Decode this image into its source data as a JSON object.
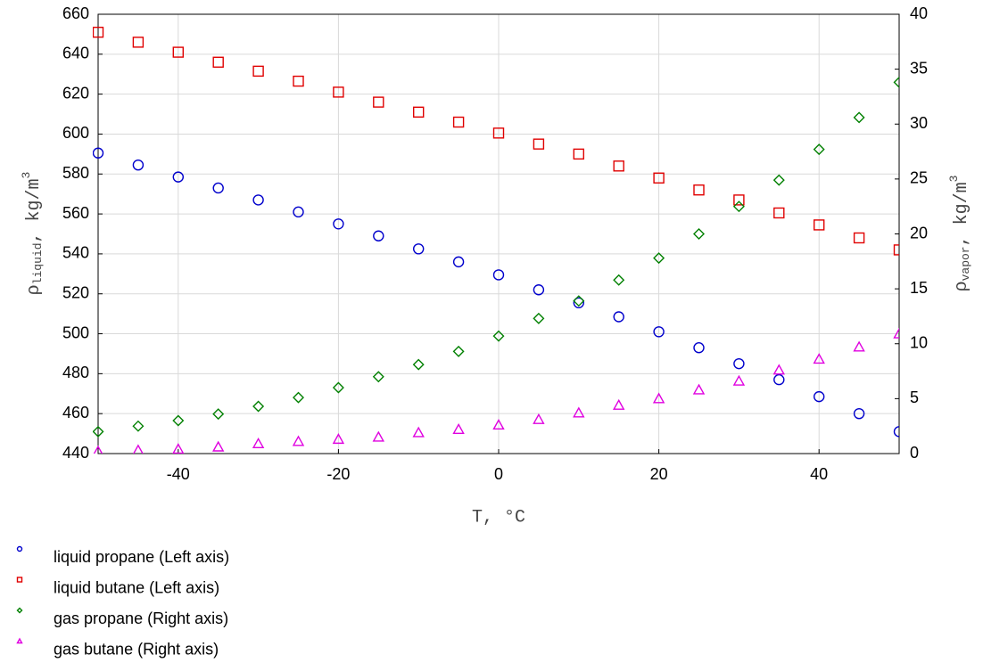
{
  "chart_data": {
    "type": "scatter",
    "x_label": "T, °C",
    "y_label": {
      "symbol": "ρ",
      "subscript": "liquid",
      "unit": ", kg/m",
      "superscript": "3"
    },
    "y2_label": {
      "symbol": "ρ",
      "subscript": "vapor",
      "unit": ", kg/m",
      "superscript": "3"
    },
    "x": [
      -50,
      -45,
      -40,
      -35,
      -30,
      -25,
      -20,
      -15,
      -10,
      -5,
      0,
      5,
      10,
      15,
      20,
      25,
      30,
      35,
      40,
      45,
      50
    ],
    "xlim": [
      -50,
      50
    ],
    "xticks": [
      -40,
      -20,
      0,
      20,
      40
    ],
    "ylim": [
      440,
      660
    ],
    "yticks": [
      440,
      460,
      480,
      500,
      520,
      540,
      560,
      580,
      600,
      620,
      640,
      660
    ],
    "y2lim": [
      0,
      40
    ],
    "y2ticks": [
      0,
      5,
      10,
      15,
      20,
      25,
      30,
      35,
      40
    ],
    "grid": true,
    "legend": "bottom",
    "series": [
      {
        "name": "liquid propane (Left axis)",
        "color": "#0000cc",
        "marker": "circle",
        "axis": "y",
        "values": [
          590.5,
          584.5,
          578.5,
          573,
          567,
          561,
          555,
          549,
          542.5,
          536,
          529.5,
          522,
          515.5,
          508.5,
          501,
          493,
          485,
          477,
          468.5,
          460,
          451
        ]
      },
      {
        "name": "liquid butane (Left axis)",
        "color": "#e00000",
        "marker": "square",
        "axis": "y",
        "values": [
          651,
          646,
          641,
          636,
          631.5,
          626.5,
          621,
          616,
          611,
          606,
          600.5,
          595,
          590,
          584,
          578,
          572,
          567,
          560.5,
          554.5,
          548,
          542
        ]
      },
      {
        "name": "gas propane (Right axis)",
        "color": "#008000",
        "marker": "diamond",
        "axis": "y2",
        "values": [
          2.0,
          2.5,
          3.0,
          3.6,
          4.3,
          5.1,
          6.0,
          7.0,
          8.1,
          9.3,
          10.7,
          12.3,
          13.9,
          15.8,
          17.8,
          20.0,
          22.5,
          24.9,
          27.7,
          30.6,
          33.8
        ]
      },
      {
        "name": "gas butane (Right axis)",
        "color": "#e000e0",
        "marker": "triangle",
        "axis": "y2",
        "values": [
          0.2,
          0.3,
          0.4,
          0.6,
          0.9,
          1.1,
          1.3,
          1.5,
          1.9,
          2.2,
          2.6,
          3.1,
          3.7,
          4.4,
          5.0,
          5.8,
          6.6,
          7.6,
          8.6,
          9.7,
          10.9
        ]
      }
    ]
  }
}
